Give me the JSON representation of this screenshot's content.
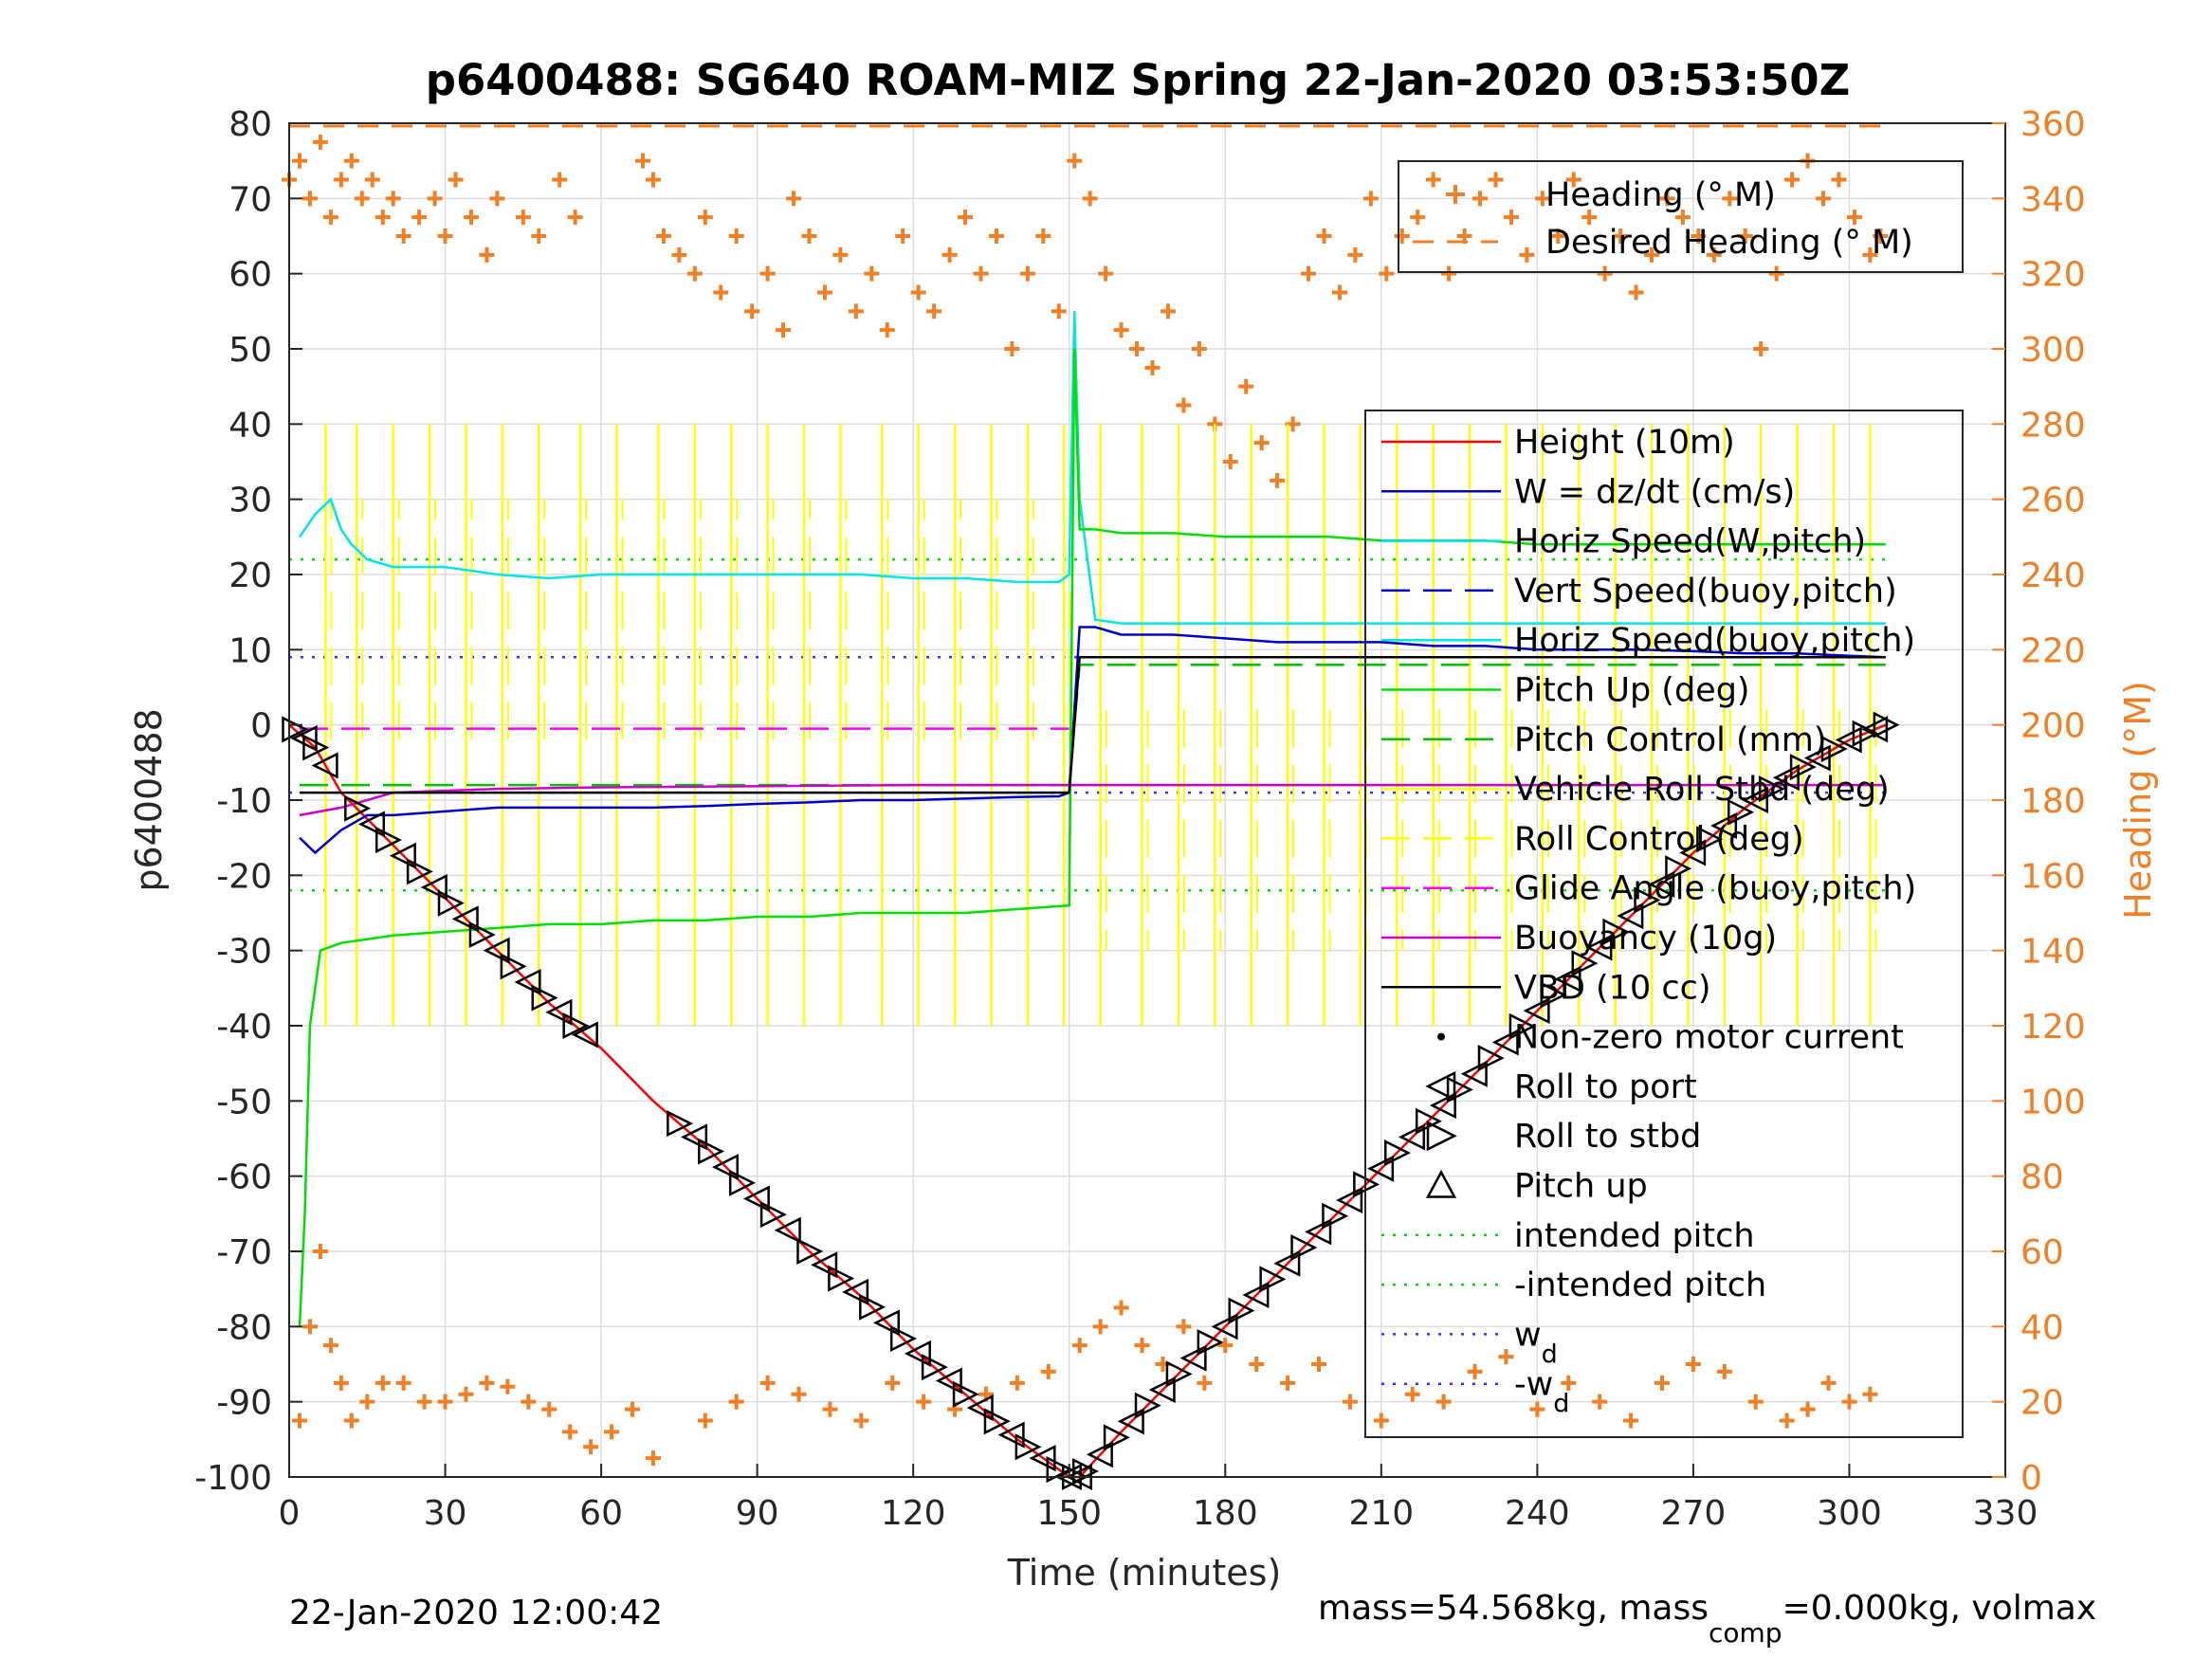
{
  "chart_data": {
    "type": "line",
    "title": "p6400488: SG640 ROAM-MIZ Spring 22-Jan-2020 03:53:50Z",
    "xlabel": "Time (minutes)",
    "ylabel": "p6400488",
    "y2label": "Heading (°M)",
    "xlim": [
      0,
      330
    ],
    "ylim": [
      -100,
      80
    ],
    "y2lim": [
      0,
      360
    ],
    "xticks": [
      "0",
      "30",
      "60",
      "90",
      "120",
      "150",
      "180",
      "210",
      "240",
      "270",
      "300",
      "330"
    ],
    "yticks": [
      "80",
      "70",
      "60",
      "50",
      "40",
      "30",
      "20",
      "10",
      "0",
      "-10",
      "-20",
      "-30",
      "-40",
      "-50",
      "-60",
      "-70",
      "-80",
      "-90",
      "-100"
    ],
    "y2ticks": [
      "360",
      "340",
      "320",
      "300",
      "280",
      "260",
      "240",
      "220",
      "200",
      "180",
      "160",
      "140",
      "120",
      "100",
      "80",
      "60",
      "40",
      "20",
      "0"
    ],
    "grid": true,
    "footer_left": "22-Jan-2020 12:00:42",
    "footer_right_prefix": "mass=54.568kg, mass",
    "footer_right_sub": "comp",
    "footer_right_suffix": "=0.000kg, volmax",
    "legend_heading": [
      {
        "label": "Heading (° M)",
        "color": "#f07f26",
        "style": "plus"
      },
      {
        "label": "Desired Heading (° M)",
        "color": "#f07f26",
        "style": "dash"
      }
    ],
    "legend_main": [
      {
        "label": "Height (10m)",
        "color": "#ff0000",
        "style": "solid"
      },
      {
        "label": "W = dz/dt (cm/s)",
        "color": "#0000cc",
        "style": "solid"
      },
      {
        "label": "Horiz Speed(W,pitch)",
        "color": "#00e5e5",
        "style": "solid"
      },
      {
        "label": "Vert Speed(buoy,pitch)",
        "color": "#0000cc",
        "style": "dash"
      },
      {
        "label": "Horiz Speed(buoy,pitch)",
        "color": "#00e5e5",
        "style": "solid"
      },
      {
        "label": "Pitch Up (deg)",
        "color": "#00e000",
        "style": "solid"
      },
      {
        "label": "Pitch Control (mm)",
        "color": "#00c000",
        "style": "dash"
      },
      {
        "label": "Vehicle Roll Stbd (deg)",
        "color": "#ffff00",
        "style": "solid"
      },
      {
        "label": "Roll Control (deg)",
        "color": "#ffff00",
        "style": "dash"
      },
      {
        "label": "Glide Angle (buoy,pitch)",
        "color": "#ff00ff",
        "style": "dash"
      },
      {
        "label": "Buoyancy (10g)",
        "color": "#cc00cc",
        "style": "solid"
      },
      {
        "label": "VBD (10 cc)",
        "color": "#000000",
        "style": "solid"
      },
      {
        "label": "Non-zero motor current",
        "color": "#000000",
        "style": "dot"
      },
      {
        "label": "Roll to port",
        "color": "#000000",
        "style": "tri-left"
      },
      {
        "label": "Roll to stbd",
        "color": "#000000",
        "style": "tri-right"
      },
      {
        "label": "Pitch up",
        "color": "#000000",
        "style": "tri-up"
      },
      {
        "label": "intended pitch",
        "color": "#00e000",
        "style": "dotted"
      },
      {
        "label": "-intended pitch",
        "color": "#00e000",
        "style": "dotted"
      },
      {
        "label": "w",
        "sub": "d",
        "color": "#3333ff",
        "style": "dotted"
      },
      {
        "label": "-w",
        "sub": "d",
        "color": "#3333ff",
        "style": "dotted"
      }
    ],
    "series": [
      {
        "name": "Height (10m)",
        "color": "#ff0000",
        "x": [
          0,
          5,
          10,
          20,
          30,
          40,
          50,
          60,
          70,
          80,
          90,
          100,
          110,
          120,
          130,
          140,
          150,
          152,
          160,
          170,
          180,
          190,
          200,
          210,
          220,
          230,
          240,
          250,
          260,
          270,
          280,
          290,
          300,
          307
        ],
        "y": [
          0,
          -3,
          -9,
          -16,
          -23,
          -30,
          -37,
          -43,
          -50,
          -56,
          -63,
          -70,
          -76,
          -83,
          -89,
          -95,
          -100,
          -100,
          -94,
          -87,
          -80,
          -73,
          -66,
          -59,
          -52,
          -45,
          -38,
          -31,
          -24,
          -17,
          -11,
          -6,
          -2,
          0
        ]
      },
      {
        "name": "W = dz/dt (cm/s)",
        "color": "#0000cc",
        "x": [
          2,
          5,
          10,
          15,
          20,
          30,
          40,
          50,
          60,
          70,
          80,
          90,
          100,
          110,
          120,
          130,
          140,
          148,
          150,
          152,
          155,
          160,
          170,
          180,
          190,
          200,
          210,
          220,
          230,
          240,
          250,
          260,
          270,
          280,
          290,
          300,
          307
        ],
        "y": [
          -15,
          -17,
          -14,
          -12,
          -12,
          -11.5,
          -11,
          -11,
          -11,
          -11,
          -10.8,
          -10.5,
          -10.3,
          -10,
          -10,
          -9.8,
          -9.6,
          -9.5,
          -9,
          13,
          13,
          12,
          12,
          11.5,
          11,
          11,
          11,
          10.5,
          10.5,
          10,
          10,
          10,
          9.8,
          9.5,
          9.5,
          9.2,
          9
        ]
      },
      {
        "name": "Horiz Speed(W,pitch)",
        "color": "#00e5e5",
        "x": [
          2,
          5,
          8,
          10,
          12,
          15,
          20,
          30,
          40,
          50,
          60,
          70,
          80,
          90,
          100,
          110,
          120,
          130,
          140,
          148,
          150,
          151,
          152,
          155,
          160,
          170,
          180,
          190,
          200,
          210,
          220,
          230,
          240,
          250,
          260,
          270,
          280,
          290,
          300,
          307
        ],
        "y": [
          25,
          28,
          30,
          26,
          24,
          22,
          21,
          21,
          20,
          19.5,
          20,
          20,
          20,
          20,
          20,
          20,
          19.5,
          19.5,
          19,
          19,
          20,
          55,
          30,
          14,
          13.5,
          13.5,
          13.5,
          13.5,
          13.5,
          13.5,
          13.5,
          13.5,
          13.5,
          13.5,
          13.5,
          13.5,
          13.5,
          13.5,
          13.5,
          13.5
        ]
      },
      {
        "name": "Pitch Up (deg)",
        "color": "#00e000",
        "x": [
          2,
          3,
          4,
          6,
          10,
          20,
          30,
          40,
          50,
          60,
          70,
          80,
          90,
          100,
          110,
          120,
          130,
          140,
          150,
          151,
          152,
          155,
          160,
          170,
          180,
          190,
          200,
          210,
          220,
          230,
          240,
          250,
          260,
          270,
          280,
          290,
          300,
          307
        ],
        "y": [
          -80,
          -65,
          -40,
          -30,
          -29,
          -28,
          -27.5,
          -27,
          -26.5,
          -26.5,
          -26,
          -26,
          -25.5,
          -25.5,
          -25,
          -25,
          -25,
          -24.5,
          -24,
          50,
          26,
          26,
          25.5,
          25.5,
          25,
          25,
          25,
          24.5,
          24.5,
          24.5,
          24,
          24,
          24,
          24,
          24,
          24,
          24,
          24
        ]
      },
      {
        "name": "Pitch Control (mm)",
        "color": "#00c000",
        "x": [
          2,
          150,
          152,
          307
        ],
        "y": [
          -8,
          -8,
          8,
          8
        ]
      },
      {
        "name": "Buoyancy (10g)",
        "color": "#cc00cc",
        "x": [
          2,
          10,
          20,
          40,
          60,
          80,
          100,
          120,
          150,
          307
        ],
        "y": [
          -12,
          -11,
          -9,
          -8.5,
          -8.3,
          -8.2,
          -8.1,
          -8,
          -8,
          -8
        ]
      },
      {
        "name": "VBD (10 cc)",
        "color": "#000000",
        "x": [
          2,
          150,
          152,
          307
        ],
        "y": [
          -9,
          -9,
          9,
          9
        ]
      },
      {
        "name": "Glide Angle (buoy,pitch)",
        "color": "#ff00ff",
        "x": [
          2,
          150
        ],
        "y": [
          -0.5,
          -0.5
        ]
      }
    ],
    "reference_lines": [
      {
        "name": "intended pitch",
        "y": 22,
        "color": "#00e000"
      },
      {
        "name": "-intended pitch",
        "y": -22,
        "color": "#00e000"
      },
      {
        "name": "w_d",
        "y": 9,
        "color": "#3333ff"
      },
      {
        "name": "-w_d",
        "y": -9,
        "color": "#3333ff"
      }
    ],
    "roll_spike_times": [
      7,
      13,
      20,
      27,
      34,
      41,
      48,
      56,
      63,
      71,
      78,
      85,
      92,
      99,
      106,
      114,
      121,
      128,
      135,
      142,
      149,
      156,
      164,
      171,
      178,
      185,
      192,
      199,
      206,
      213,
      220,
      227,
      234,
      241,
      248,
      255,
      262,
      269,
      276,
      283,
      290,
      297,
      304
    ],
    "marker_times": [
      1,
      3,
      5,
      7,
      13,
      16,
      19,
      22,
      25,
      28,
      31,
      34,
      37,
      40,
      43,
      46,
      49,
      52,
      55,
      57,
      75,
      78,
      81,
      84,
      87,
      90,
      93,
      96,
      100,
      103,
      106,
      109,
      112,
      115,
      118,
      121,
      124,
      127,
      130,
      133,
      136,
      139,
      142,
      145,
      148,
      150,
      151,
      152,
      153,
      156,
      159,
      162,
      165,
      168,
      171,
      174,
      177,
      180,
      183,
      186,
      189,
      192,
      195,
      198,
      201,
      204,
      207,
      210,
      213,
      216,
      219,
      222,
      225,
      228,
      231,
      234,
      237,
      240,
      243,
      246,
      249,
      252,
      255,
      258,
      261,
      264,
      267,
      270,
      273,
      276,
      279,
      282,
      285,
      288,
      291,
      294,
      297,
      300,
      303,
      305,
      307
    ],
    "heading_points": {
      "x": [
        0,
        2,
        4,
        6,
        8,
        10,
        12,
        14,
        16,
        18,
        20,
        22,
        25,
        28,
        30,
        32,
        35,
        38,
        40,
        45,
        48,
        52,
        55,
        68,
        70,
        72,
        75,
        78,
        80,
        83,
        86,
        89,
        92,
        95,
        97,
        100,
        103,
        106,
        109,
        112,
        115,
        118,
        121,
        124,
        127,
        130,
        133,
        136,
        139,
        142,
        145,
        148,
        151,
        154,
        157,
        160,
        163,
        166,
        169,
        172,
        175,
        178,
        181,
        184,
        187,
        190,
        193,
        196,
        199,
        202,
        205,
        208,
        211,
        214,
        217,
        220,
        223,
        226,
        229,
        232,
        235,
        238,
        241,
        244,
        247,
        250,
        253,
        256,
        259,
        262,
        265,
        268,
        271,
        274,
        277,
        280,
        283,
        286,
        289,
        292,
        295,
        298,
        301,
        304,
        306,
        2,
        4,
        6,
        8,
        10,
        12,
        15,
        18,
        22,
        26,
        30,
        34,
        38,
        42,
        46,
        50,
        54,
        58,
        62,
        66,
        70,
        80,
        86,
        92,
        98,
        104,
        110,
        116,
        122,
        128,
        134,
        140,
        146,
        152,
        156,
        160,
        164,
        168,
        172,
        176,
        180,
        186,
        192,
        198,
        204,
        210,
        216,
        222,
        228,
        234,
        240,
        246,
        252,
        258,
        264,
        270,
        276,
        282,
        288,
        292,
        296,
        300,
        304
      ],
      "y": [
        345,
        350,
        340,
        355,
        335,
        345,
        350,
        340,
        345,
        335,
        340,
        330,
        335,
        340,
        330,
        345,
        335,
        325,
        340,
        335,
        330,
        345,
        335,
        350,
        345,
        330,
        325,
        320,
        335,
        315,
        330,
        310,
        320,
        305,
        340,
        330,
        315,
        325,
        310,
        320,
        305,
        330,
        315,
        310,
        325,
        335,
        320,
        330,
        300,
        320,
        330,
        310,
        350,
        340,
        320,
        305,
        300,
        295,
        310,
        285,
        300,
        280,
        270,
        290,
        275,
        265,
        280,
        320,
        330,
        315,
        325,
        340,
        320,
        330,
        335,
        345,
        320,
        330,
        340,
        345,
        335,
        325,
        340,
        330,
        345,
        335,
        320,
        330,
        315,
        325,
        340,
        335,
        330,
        325,
        340,
        330,
        300,
        320,
        345,
        350,
        340,
        345,
        335,
        325,
        330,
        15,
        40,
        60,
        35,
        25,
        15,
        20,
        25,
        25,
        20,
        20,
        22,
        25,
        24,
        20,
        18,
        12,
        8,
        12,
        18,
        5,
        15,
        20,
        25,
        22,
        18,
        15,
        25,
        20,
        18,
        22,
        25,
        28,
        35,
        40,
        45,
        35,
        30,
        40,
        25,
        35,
        30,
        25,
        30,
        20,
        15,
        22,
        20,
        28,
        32,
        18,
        25,
        20,
        15,
        25,
        30,
        28,
        20,
        15,
        18,
        25,
        20,
        22
      ]
    }
  }
}
